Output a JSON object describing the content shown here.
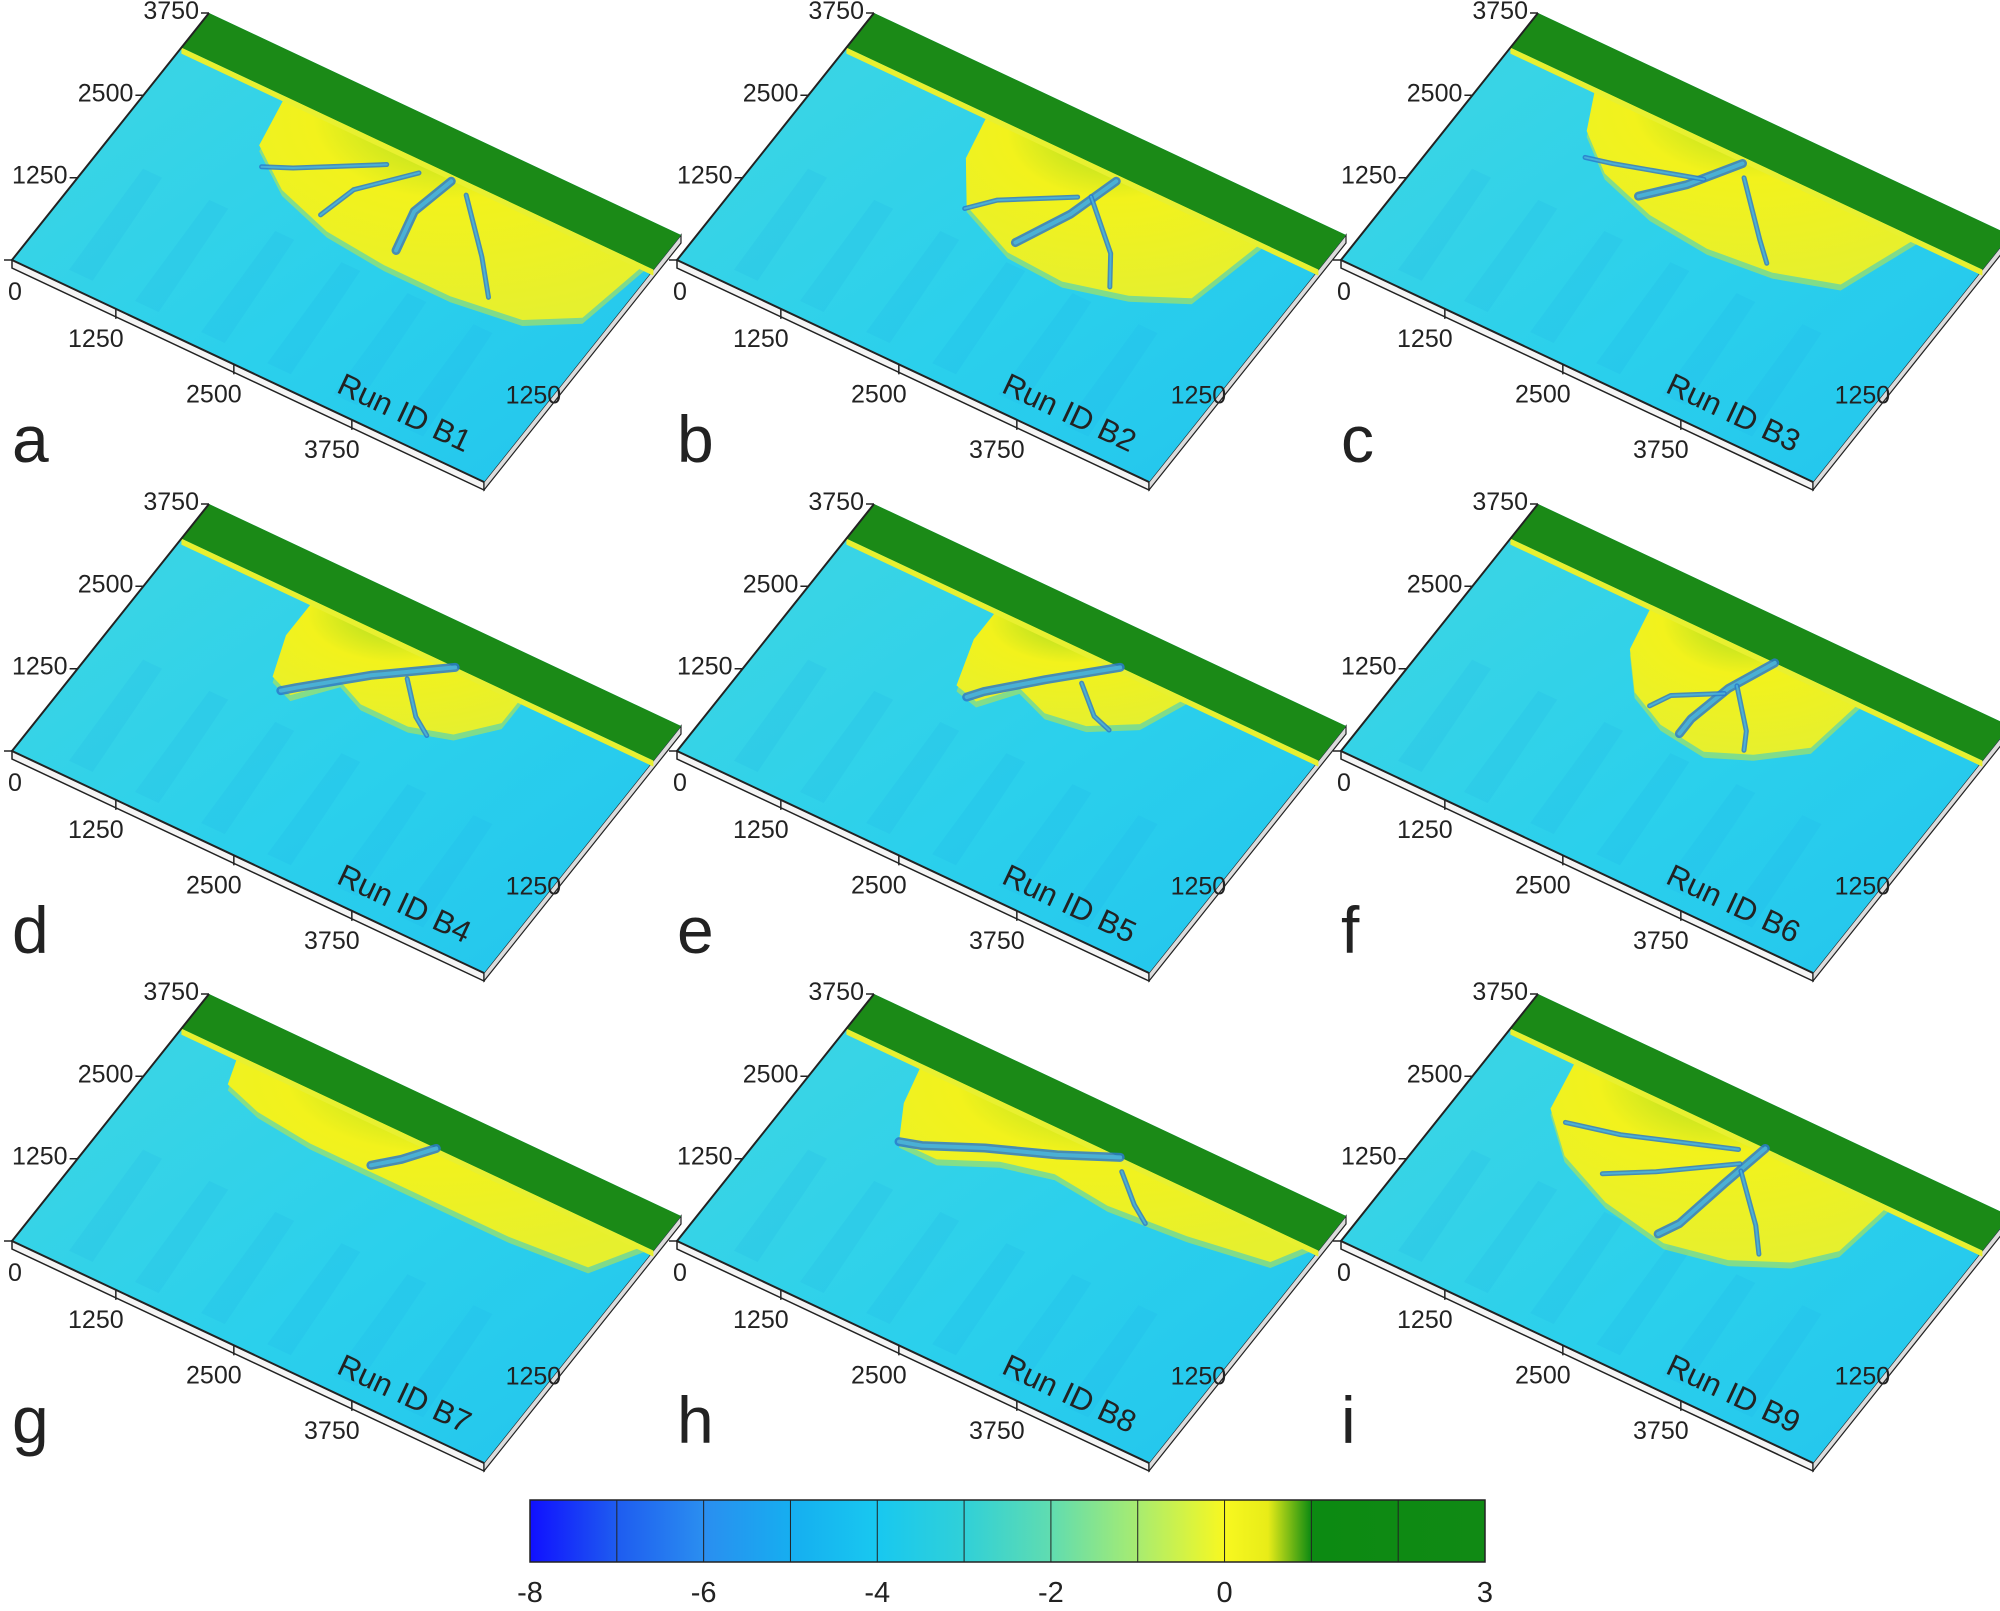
{
  "panels": [
    {
      "letter": "a",
      "run_label": "Run ID B1",
      "variant": 1
    },
    {
      "letter": "b",
      "run_label": "Run ID B2",
      "variant": 2
    },
    {
      "letter": "c",
      "run_label": "Run ID B3",
      "variant": 3
    },
    {
      "letter": "d",
      "run_label": "Run ID B4",
      "variant": 4
    },
    {
      "letter": "e",
      "run_label": "Run ID B5",
      "variant": 5
    },
    {
      "letter": "f",
      "run_label": "Run ID B6",
      "variant": 6
    },
    {
      "letter": "g",
      "run_label": "Run ID B7",
      "variant": 7
    },
    {
      "letter": "h",
      "run_label": "Run ID B8",
      "variant": 8
    },
    {
      "letter": "i",
      "run_label": "Run ID B9",
      "variant": 9
    }
  ],
  "axis_ticks": {
    "left": [
      "0",
      "1250",
      "2500",
      "3750"
    ],
    "bottom": [
      "1250",
      "2500",
      "3750"
    ],
    "right": [
      "1250"
    ]
  },
  "colorbar": {
    "min": -8,
    "max": 3,
    "tick_labels": [
      "-8",
      "-6",
      "-4",
      "-2",
      "0",
      "3"
    ],
    "tick_values": [
      -8,
      -6,
      -4,
      -2,
      0,
      3
    ],
    "segment_count": 11,
    "stops": [
      {
        "value": -8,
        "color": "#1010ff"
      },
      {
        "value": -7,
        "color": "#1e5cf0"
      },
      {
        "value": -6,
        "color": "#2a8ef0"
      },
      {
        "value": -5,
        "color": "#16aef0"
      },
      {
        "value": -4,
        "color": "#18c8f0"
      },
      {
        "value": -3,
        "color": "#30d0d8"
      },
      {
        "value": -2,
        "color": "#60dcb0"
      },
      {
        "value": -1,
        "color": "#a8ec70"
      },
      {
        "value": 0,
        "color": "#f8f820"
      },
      {
        "value": 0.5,
        "color": "#e8ec18"
      },
      {
        "value": 1,
        "color": "#0c8a12"
      },
      {
        "value": 3,
        "color": "#108a14"
      }
    ]
  },
  "colors": {
    "land": "#1b8a17",
    "delta_top": "#f2f21c",
    "delta_edge": "#c8e83a",
    "water": "#2bd0ec",
    "water_deep": "#1aa8e8",
    "channel": "#2a7acb",
    "box_side": "#f4f4f4"
  }
}
